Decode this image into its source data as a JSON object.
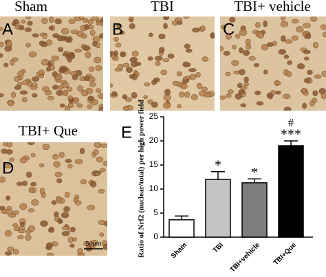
{
  "panels": [
    {
      "letter": "A",
      "title": "Sham"
    },
    {
      "letter": "B",
      "title": "TBI"
    },
    {
      "letter": "C",
      "title": "TBI+ vehicle"
    },
    {
      "letter": "D",
      "title": "TBI+ Que",
      "scale_bar": "50μm"
    }
  ],
  "chart_data": {
    "type": "bar",
    "letter": "E",
    "ylabel": "Ratio of Nrf2 (nuclear/total) per high power field",
    "categories": [
      "Sham",
      "TBI",
      "TBI+vehicle",
      "TBI+Que"
    ],
    "values": [
      3.6,
      12,
      11.3,
      19
    ],
    "errors": [
      0.8,
      1.6,
      0.8,
      1.0
    ],
    "colors": [
      "#ffffff",
      "#c4c4c4",
      "#7d7d7d",
      "#000000"
    ],
    "annotations_vs_sham": [
      null,
      "*",
      "*",
      "***"
    ],
    "annotations_vs_vehicle": [
      null,
      null,
      null,
      "#"
    ],
    "ylim": [
      0,
      25
    ],
    "yticks": [
      0,
      5,
      10,
      15,
      20,
      25
    ]
  }
}
